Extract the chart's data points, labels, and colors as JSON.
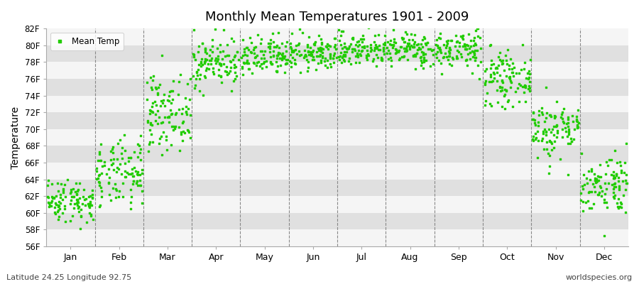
{
  "title": "Monthly Mean Temperatures 1901 - 2009",
  "ylabel": "Temperature",
  "xlabel_bottom_left": "Latitude 24.25 Longitude 92.75",
  "xlabel_bottom_right": "worldspecies.org",
  "legend_label": "Mean Temp",
  "dot_color": "#22cc00",
  "background_color": "#ffffff",
  "plot_bg_color": "#e8e8e8",
  "stripe_color_light": "#f5f5f5",
  "stripe_color_dark": "#e0e0e0",
  "ytick_labels": [
    "56F",
    "58F",
    "60F",
    "62F",
    "64F",
    "66F",
    "68F",
    "70F",
    "72F",
    "74F",
    "76F",
    "78F",
    "80F",
    "82F"
  ],
  "ytick_values": [
    56,
    58,
    60,
    62,
    64,
    66,
    68,
    70,
    72,
    74,
    76,
    78,
    80,
    82
  ],
  "ylim": [
    56,
    82
  ],
  "month_names": [
    "Jan",
    "Feb",
    "Mar",
    "Apr",
    "May",
    "Jun",
    "Jul",
    "Aug",
    "Sep",
    "Oct",
    "Nov",
    "Dec"
  ],
  "n_years": 109,
  "seed": 42,
  "month_mean_temps": [
    61.5,
    64.5,
    72.0,
    78.0,
    78.5,
    79.0,
    79.5,
    79.5,
    79.5,
    76.0,
    70.0,
    63.5
  ],
  "month_std_temps": [
    1.3,
    2.0,
    2.2,
    1.5,
    1.2,
    1.0,
    1.0,
    1.0,
    1.2,
    1.5,
    1.8,
    1.8
  ]
}
